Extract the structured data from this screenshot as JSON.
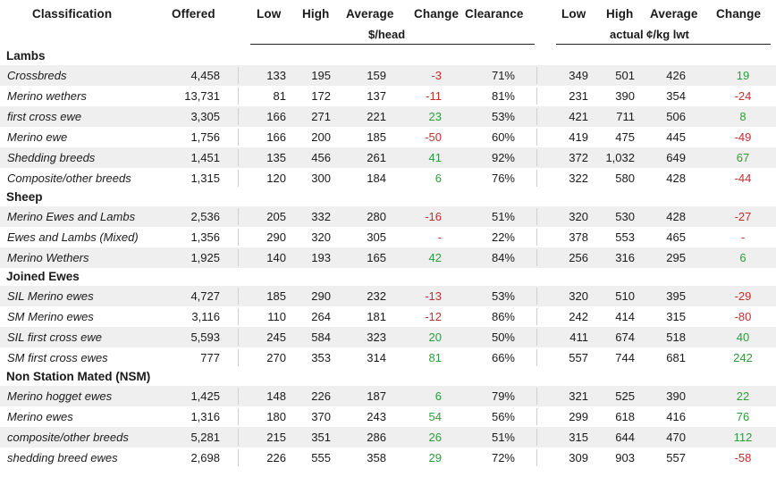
{
  "header": {
    "classification": "Classification",
    "offered": "Offered",
    "low": "Low",
    "high": "High",
    "average": "Average",
    "change": "Change",
    "clearance": "Clearance",
    "low2": "Low",
    "high2": "High",
    "average2": "Average",
    "change2": "Change",
    "unit_head": "$/head",
    "unit_kg": "actual ¢/kg lwt"
  },
  "sections": [
    {
      "title": "Lambs",
      "rows": [
        {
          "name": "Crossbreds",
          "offered": "4,458",
          "low": "133",
          "high": "195",
          "avg": "159",
          "change": "-3",
          "clearance": "71%",
          "low2": "349",
          "high2": "501",
          "avg2": "426",
          "change2": "19"
        },
        {
          "name": "Merino wethers",
          "offered": "13,731",
          "low": "81",
          "high": "172",
          "avg": "137",
          "change": "-11",
          "clearance": "81%",
          "low2": "231",
          "high2": "390",
          "avg2": "354",
          "change2": "-24"
        },
        {
          "name": "first cross ewe",
          "offered": "3,305",
          "low": "166",
          "high": "271",
          "avg": "221",
          "change": "23",
          "clearance": "53%",
          "low2": "421",
          "high2": "711",
          "avg2": "506",
          "change2": "8"
        },
        {
          "name": "Merino ewe",
          "offered": "1,756",
          "low": "166",
          "high": "200",
          "avg": "185",
          "change": "-50",
          "clearance": "60%",
          "low2": "419",
          "high2": "475",
          "avg2": "445",
          "change2": "-49"
        },
        {
          "name": "Shedding breeds",
          "offered": "1,451",
          "low": "135",
          "high": "456",
          "avg": "261",
          "change": "41",
          "clearance": "92%",
          "low2": "372",
          "high2": "1,032",
          "avg2": "649",
          "change2": "67"
        },
        {
          "name": "Composite/other breeds",
          "offered": "1,315",
          "low": "120",
          "high": "300",
          "avg": "184",
          "change": "6",
          "clearance": "76%",
          "low2": "322",
          "high2": "580",
          "avg2": "428",
          "change2": "-44"
        }
      ]
    },
    {
      "title": "Sheep",
      "rows": [
        {
          "name": "Merino Ewes and Lambs",
          "offered": "2,536",
          "low": "205",
          "high": "332",
          "avg": "280",
          "change": "-16",
          "clearance": "51%",
          "low2": "320",
          "high2": "530",
          "avg2": "428",
          "change2": "-27"
        },
        {
          "name": "Ewes and Lambs (Mixed)",
          "offered": "1,356",
          "low": "290",
          "high": "320",
          "avg": "305",
          "change": "-",
          "clearance": "22%",
          "low2": "378",
          "high2": "553",
          "avg2": "465",
          "change2": "-"
        },
        {
          "name": "Merino Wethers",
          "offered": "1,925",
          "low": "140",
          "high": "193",
          "avg": "165",
          "change": "42",
          "clearance": "84%",
          "low2": "256",
          "high2": "316",
          "avg2": "295",
          "change2": "6"
        }
      ]
    },
    {
      "title": "Joined Ewes",
      "rows": [
        {
          "name": "SIL Merino ewes",
          "offered": "4,727",
          "low": "185",
          "high": "290",
          "avg": "232",
          "change": "-13",
          "clearance": "53%",
          "low2": "320",
          "high2": "510",
          "avg2": "395",
          "change2": "-29"
        },
        {
          "name": "SM Merino ewes",
          "offered": "3,116",
          "low": "110",
          "high": "264",
          "avg": "181",
          "change": "-12",
          "clearance": "86%",
          "low2": "242",
          "high2": "414",
          "avg2": "315",
          "change2": "-80"
        },
        {
          "name": "SIL first cross ewe",
          "offered": "5,593",
          "low": "245",
          "high": "584",
          "avg": "323",
          "change": "20",
          "clearance": "50%",
          "low2": "411",
          "high2": "674",
          "avg2": "518",
          "change2": "40"
        },
        {
          "name": "SM first cross ewes",
          "offered": "777",
          "low": "270",
          "high": "353",
          "avg": "314",
          "change": "81",
          "clearance": "66%",
          "low2": "557",
          "high2": "744",
          "avg2": "681",
          "change2": "242"
        }
      ]
    },
    {
      "title": "Non Station Mated (NSM)",
      "rows": [
        {
          "name": "Merino hogget ewes",
          "offered": "1,425",
          "low": "148",
          "high": "226",
          "avg": "187",
          "change": "6",
          "clearance": "79%",
          "low2": "321",
          "high2": "525",
          "avg2": "390",
          "change2": "22"
        },
        {
          "name": "Merino ewes",
          "offered": "1,316",
          "low": "180",
          "high": "370",
          "avg": "243",
          "change": "54",
          "clearance": "56%",
          "low2": "299",
          "high2": "618",
          "avg2": "416",
          "change2": "76"
        },
        {
          "name": "composite/other breeds",
          "offered": "5,281",
          "low": "215",
          "high": "351",
          "avg": "286",
          "change": "26",
          "clearance": "51%",
          "low2": "315",
          "high2": "644",
          "avg2": "470",
          "change2": "112"
        },
        {
          "name": "shedding breed ewes",
          "offered": "2,698",
          "low": "226",
          "high": "555",
          "avg": "358",
          "change": "29",
          "clearance": "72%",
          "low2": "309",
          "high2": "903",
          "avg2": "557",
          "change2": "-58"
        }
      ]
    }
  ],
  "colors": {
    "positive": "#2f9a3c",
    "negative": "#c0302e",
    "stripe": "#efefef"
  }
}
